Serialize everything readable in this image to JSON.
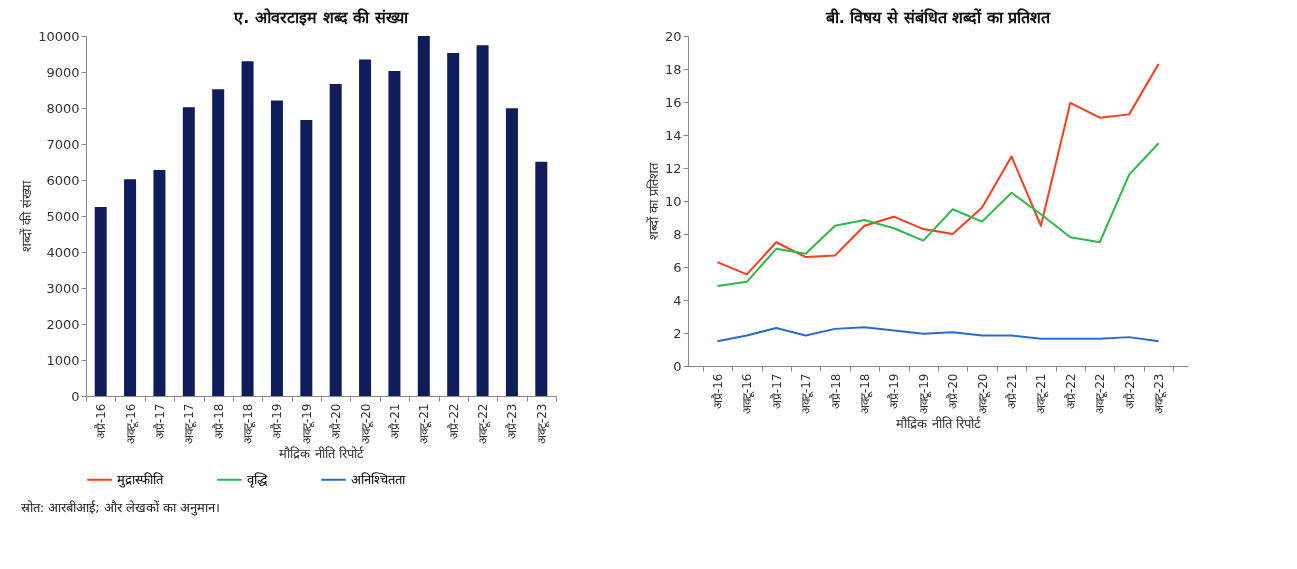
{
  "chart_data": [
    {
      "type": "bar",
      "title": "ए. ओवरटाइम शब्द की संख्या",
      "xlabel": "मौद्रिक नीति रिपोर्ट",
      "ylabel": "शब्दों की संख्या",
      "categories": [
        "अप्रै-16",
        "अक्टू-16",
        "अप्रै-17",
        "अक्टू-17",
        "अप्रै-18",
        "अक्टू-18",
        "अप्रै-19",
        "अक्टू-19",
        "अप्रै-20",
        "अक्टू-20",
        "अप्रै-21",
        "अक्टू-21",
        "अप्रै-22",
        "अक्टू-22",
        "अप्रै-23",
        "अक्टू-23"
      ],
      "values": [
        5250,
        6020,
        6280,
        8020,
        8520,
        9300,
        8210,
        7670,
        8670,
        9350,
        9030,
        10000,
        9530,
        9740,
        7990,
        6510
      ],
      "color": "#0f1e5a",
      "ylim": [
        0,
        10000
      ],
      "yticks": [
        0,
        1000,
        2000,
        3000,
        4000,
        5000,
        6000,
        7000,
        8000,
        9000,
        10000
      ],
      "grid": false,
      "annotations": [
        "स्रोत: आरबीआई; और लेखकों का अनुमान।"
      ]
    },
    {
      "type": "line",
      "title": "बी. विषय से संबंधित शब्दों का प्रतिशत",
      "xlabel": "मौद्रिक नीति रिपोर्ट",
      "ylabel": "शब्दों का प्रतिशत",
      "categories": [
        "अप्रै-16",
        "अक्टू-16",
        "अप्रै-17",
        "अक्टू-17",
        "अप्रै-18",
        "अक्टू-18",
        "अप्रै-19",
        "अक्टू-19",
        "अप्रै-20",
        "अक्टू-20",
        "अप्रै-21",
        "अक्टू-21",
        "अप्रै-22",
        "अक्टू-22",
        "अप्रै-23",
        "अक्टू-23"
      ],
      "series": [
        {
          "name": "मुद्रास्फीति",
          "color": "#fa3c1e",
          "values": [
            6.3,
            5.55,
            7.5,
            6.6,
            6.7,
            8.5,
            9.05,
            8.3,
            8.0,
            9.6,
            12.7,
            8.5,
            15.95,
            15.05,
            15.25,
            18.3
          ]
        },
        {
          "name": "वृद्धि",
          "color": "#2db84a",
          "values": [
            4.85,
            5.1,
            7.1,
            6.8,
            8.5,
            8.85,
            8.35,
            7.6,
            9.5,
            8.75,
            10.5,
            9.2,
            7.8,
            7.5,
            11.6,
            13.5
          ]
        },
        {
          "name": "अनिश्चितता",
          "color": "#2a6ac8",
          "values": [
            1.5,
            1.85,
            2.3,
            1.85,
            2.25,
            2.35,
            2.15,
            1.95,
            2.05,
            1.85,
            1.85,
            1.65,
            1.65,
            1.65,
            1.75,
            1.5
          ]
        }
      ],
      "ylim": [
        0,
        20
      ],
      "yticks": [
        0,
        2,
        4,
        6,
        8,
        10,
        12,
        14,
        16,
        18,
        20
      ],
      "grid": false,
      "legend": "bottom",
      "marker": "none",
      "line_style": "solid"
    }
  ]
}
